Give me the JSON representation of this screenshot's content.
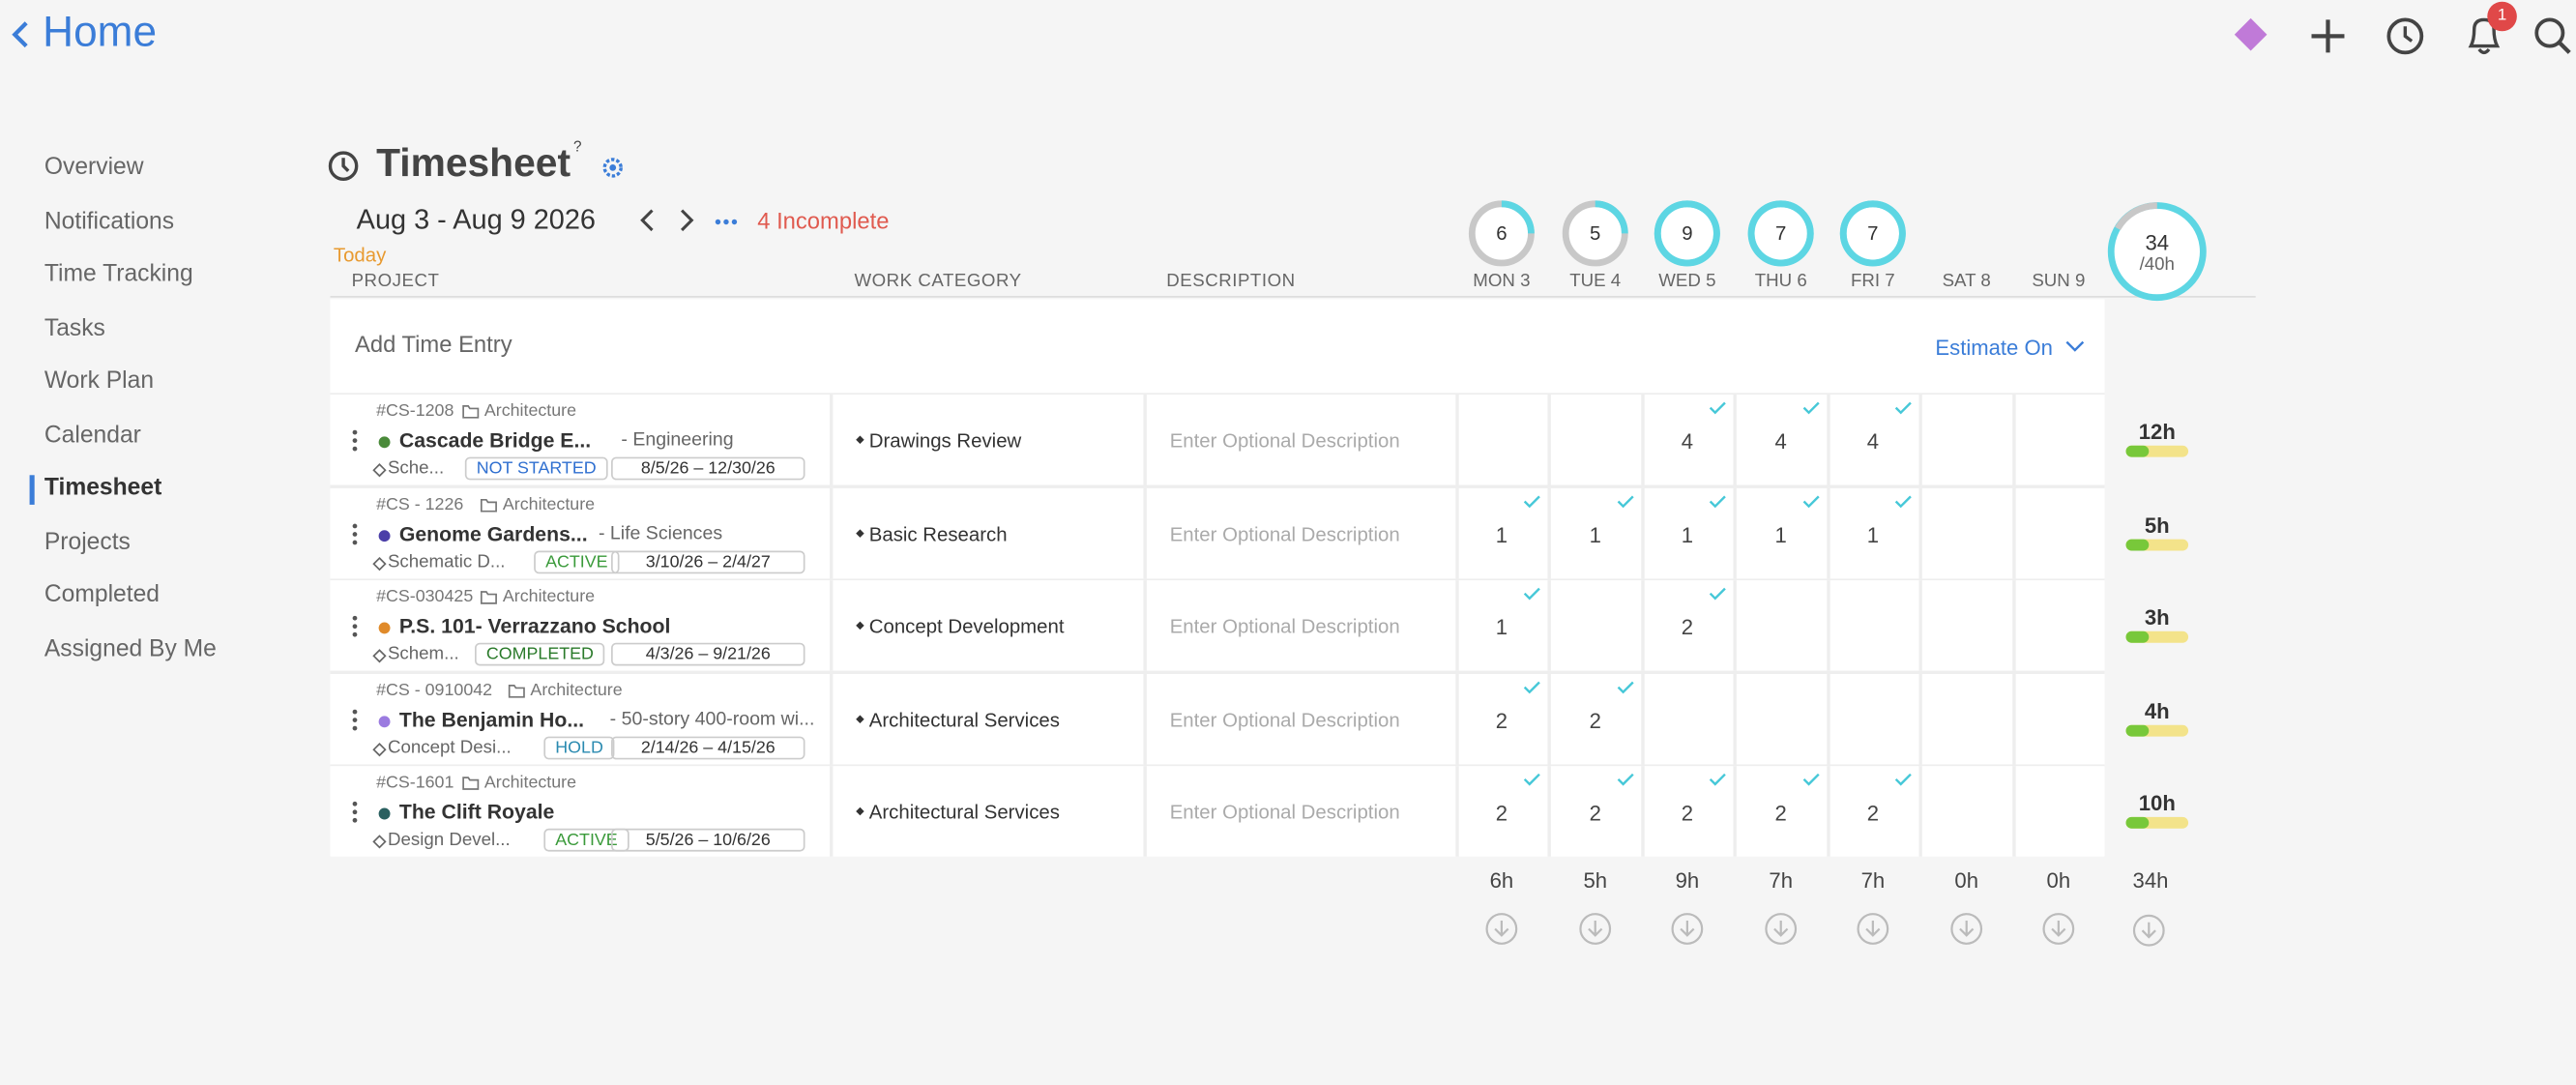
{
  "header": {
    "back": "Home",
    "badge": "1"
  },
  "sidebar": {
    "items": [
      "Overview",
      "Notifications",
      "Time Tracking",
      "Tasks",
      "Work Plan",
      "Calendar",
      "Timesheet",
      "Projects",
      "Completed",
      "Assigned By Me"
    ],
    "active": 6
  },
  "page": {
    "title": "Timesheet",
    "help": "?",
    "week": "Aug 3 - Aug 9 2026",
    "incomplete": "4 Incomplete",
    "today": "Today"
  },
  "columns": [
    "PROJECT",
    "WORK CATEGORY",
    "DESCRIPTION"
  ],
  "days": [
    {
      "label": "MON 3",
      "ring": 6,
      "total": "6h"
    },
    {
      "label": "TUE 4",
      "ring": 5,
      "total": "5h"
    },
    {
      "label": "WED 5",
      "ring": 9,
      "total": "9h"
    },
    {
      "label": "THU 6",
      "ring": 7,
      "total": "7h"
    },
    {
      "label": "FRI 7",
      "ring": 7,
      "total": "7h"
    },
    {
      "label": "SAT 8",
      "ring": null,
      "total": "0h"
    },
    {
      "label": "SUN 9",
      "ring": null,
      "total": "0h"
    }
  ],
  "week_ring": {
    "value": 34,
    "target": "/40h",
    "total": "34h"
  },
  "add_entry": {
    "label": "Add Time Entry",
    "estimate": "Estimate On"
  },
  "rows": [
    {
      "id": "#CS-1208",
      "folder": "Architecture",
      "name": "Cascade Bridge E...",
      "sub": "- Engineering",
      "dot": "#4a8a3a",
      "phase": "Sche...",
      "status": "NOT STARTED",
      "status_color": "#2f6fd0",
      "dates": "8/5/26  –  12/30/26",
      "category": "Drawings Review",
      "description": "Enter Optional Description",
      "hours": [
        null,
        null,
        4,
        4,
        4,
        null,
        null
      ],
      "total": "12h"
    },
    {
      "id": "#CS - 1226",
      "folder": "Architecture",
      "name": "Genome Gardens...",
      "sub": "- Life Sciences",
      "dot": "#4b3fa8",
      "phase": "Schematic D...",
      "status": "ACTIVE",
      "status_color": "#3a9a3a",
      "dates": "3/10/26  –  2/4/27",
      "category": "Basic Research",
      "description": "Enter Optional Description",
      "hours": [
        1,
        1,
        1,
        1,
        1,
        null,
        null
      ],
      "total": "5h"
    },
    {
      "id": "#CS-030425",
      "folder": "Architecture",
      "name": "P.S. 101- Verrazzano School",
      "dot": "#e08a2a",
      "phase": "Schem...",
      "status": "COMPLETED",
      "status_color": "#2a7a2a",
      "dates": "4/3/26  –  9/21/26",
      "category": "Concept Development",
      "description": "Enter Optional Description",
      "hours": [
        1,
        null,
        2,
        null,
        null,
        null,
        null
      ],
      "total": "3h"
    },
    {
      "id": "#CS - 0910042",
      "folder": "Architecture",
      "name": "The Benjamin Ho...",
      "sub": "- 50-story 400-room wi...",
      "dot": "#9b7be0",
      "phase": "Concept Desi...",
      "status": "HOLD",
      "status_color": "#2a8ab0",
      "dates": "2/14/26  –  4/15/26",
      "category": "Architectural Services",
      "description": "Enter Optional Description",
      "hours": [
        2,
        2,
        null,
        null,
        null,
        null,
        null
      ],
      "total": "4h"
    },
    {
      "id": "#CS-1601",
      "folder": "Architecture",
      "name": "The Clift Royale",
      "dot": "#2a6060",
      "phase": "Design Devel...",
      "status": "ACTIVE",
      "status_color": "#3a9a3a",
      "dates": "5/5/26  –  10/6/26",
      "category": "Architectural Services",
      "description": "Enter Optional Description",
      "hours": [
        2,
        2,
        2,
        2,
        2,
        null,
        null
      ],
      "total": "10h"
    }
  ]
}
